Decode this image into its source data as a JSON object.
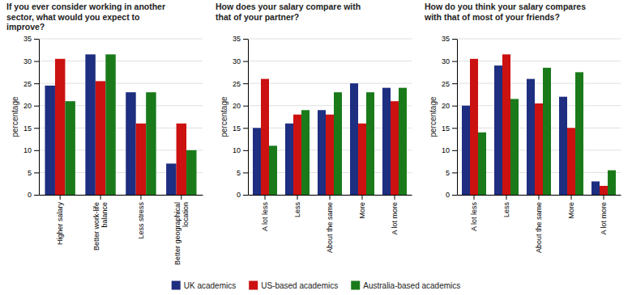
{
  "chart_data": [
    {
      "type": "bar",
      "title": "If you ever consider working in another\nsector, what would you expect to\nimprove?",
      "categories": [
        "Higher salary",
        "Better work-life\nbalance",
        "Less stress",
        "Better geographical\nlocation"
      ],
      "series": [
        {
          "name": "UK academics",
          "color": "#1e2e80",
          "values": [
            24.5,
            31.5,
            23,
            7
          ]
        },
        {
          "name": "US-based academics",
          "color": "#cc1111",
          "values": [
            30.5,
            25.5,
            16,
            16
          ]
        },
        {
          "name": "Australia-based academics",
          "color": "#1a7a1a",
          "values": [
            21,
            31.5,
            23,
            10
          ]
        }
      ],
      "ylabel": "percentage",
      "ylim": [
        0,
        35
      ],
      "yticks": [
        0,
        5,
        10,
        15,
        20,
        25,
        30,
        35
      ],
      "grid": true,
      "legend": "bottom"
    },
    {
      "type": "bar",
      "title": "How does your salary compare with\nthat of your partner?",
      "categories": [
        "A lot less",
        "Less",
        "About the same",
        "More",
        "A lot more"
      ],
      "series": [
        {
          "name": "UK academics",
          "color": "#1e2e80",
          "values": [
            15,
            16,
            19,
            25,
            24
          ]
        },
        {
          "name": "US-based academics",
          "color": "#cc1111",
          "values": [
            26,
            18,
            18,
            16,
            21
          ]
        },
        {
          "name": "Australia-based academics",
          "color": "#1a7a1a",
          "values": [
            11,
            19,
            23,
            23,
            24
          ]
        }
      ],
      "ylabel": "percentage",
      "ylim": [
        0,
        35
      ],
      "yticks": [
        0,
        5,
        10,
        15,
        20,
        25,
        30,
        35
      ],
      "grid": true
    },
    {
      "type": "bar",
      "title": "How do you think your salary compares\nwith that of most of your friends?",
      "categories": [
        "A lot less",
        "Less",
        "About the same",
        "More",
        "A lot more"
      ],
      "series": [
        {
          "name": "UK academics",
          "color": "#1e2e80",
          "values": [
            20,
            29,
            26,
            22,
            3
          ]
        },
        {
          "name": "US-based academics",
          "color": "#cc1111",
          "values": [
            30.5,
            31.5,
            20.5,
            15,
            2
          ]
        },
        {
          "name": "Australia-based academics",
          "color": "#1a7a1a",
          "values": [
            14,
            21.5,
            28.5,
            27.5,
            5.5
          ]
        }
      ],
      "ylabel": "percentage",
      "ylim": [
        0,
        35
      ],
      "yticks": [
        0,
        5,
        10,
        15,
        20,
        25,
        30,
        35
      ],
      "grid": true
    }
  ]
}
